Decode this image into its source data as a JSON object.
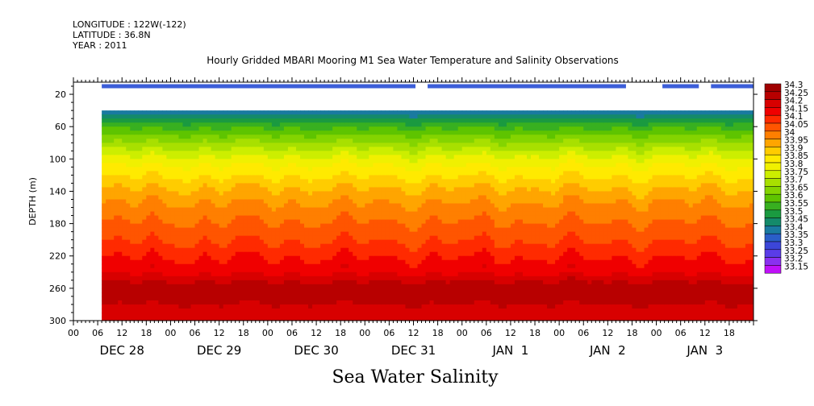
{
  "header": {
    "longitude": "LONGITUDE : 122W(-122)",
    "latitude": "LATITUDE : 36.8N",
    "year": "YEAR : 2011"
  },
  "chart_data": {
    "type": "heatmap",
    "title": "Hourly Gridded MBARI Mooring M1 Sea Water Temperature and Salinity Observations",
    "xlabel": "Sea Water Salinity",
    "ylabel": "DEPTH (m)",
    "y_range": [
      300,
      5
    ],
    "y_ticks": [
      20,
      60,
      100,
      140,
      180,
      220,
      260,
      300
    ],
    "x_range_hours": [
      0,
      168
    ],
    "x_hour_ticks": [
      "00",
      "06",
      "12",
      "18",
      "00",
      "06",
      "12",
      "18",
      "00",
      "06",
      "12",
      "18",
      "00",
      "06",
      "12",
      "18",
      "00",
      "06",
      "12",
      "18",
      "00",
      "06",
      "12",
      "18",
      "00",
      "06",
      "12",
      "18"
    ],
    "x_day_labels": [
      "DEC 28",
      "DEC 29",
      "DEC 30",
      "DEC 31",
      "JAN  1",
      "JAN  2",
      "JAN  3"
    ],
    "data_start_hour": 7,
    "shallow_bin_depth": 10,
    "shallow_bin_segments": [
      [
        7,
        84.5
      ],
      [
        87.5,
        136.5
      ],
      [
        145.5,
        154.5
      ],
      [
        157.5,
        168
      ]
    ],
    "profile_top_depth": 40,
    "colorbar": {
      "levels": [
        "34.3",
        "34.25",
        "34.2",
        "34.15",
        "34.1",
        "34.05",
        "34",
        "33.95",
        "33.9",
        "33.85",
        "33.8",
        "33.75",
        "33.7",
        "33.65",
        "33.6",
        "33.55",
        "33.5",
        "33.45",
        "33.4",
        "33.35",
        "33.3",
        "33.25",
        "33.2",
        "33.15"
      ],
      "colors": [
        "#a00000",
        "#b80000",
        "#d80000",
        "#f00000",
        "#ff2a00",
        "#ff5500",
        "#ff7f00",
        "#ffa500",
        "#ffcc00",
        "#ffea00",
        "#f0f000",
        "#ccee00",
        "#a8e000",
        "#84d400",
        "#5ec400",
        "#38b020",
        "#1a9a40",
        "#148a6a",
        "#1a7aa0",
        "#2a5ec8",
        "#3c46d8",
        "#5a3ce8",
        "#8a30f0",
        "#c010f8"
      ]
    },
    "salinity_profile_depths": [
      40,
      50,
      60,
      80,
      100,
      120,
      140,
      160,
      180,
      200,
      220,
      240,
      255,
      270,
      285,
      300
    ],
    "salinity_profile_values": [
      33.4,
      33.52,
      33.6,
      33.72,
      33.83,
      33.9,
      33.97,
      34.02,
      34.06,
      34.1,
      34.15,
      34.2,
      34.28,
      34.28,
      34.22,
      34.2
    ]
  }
}
